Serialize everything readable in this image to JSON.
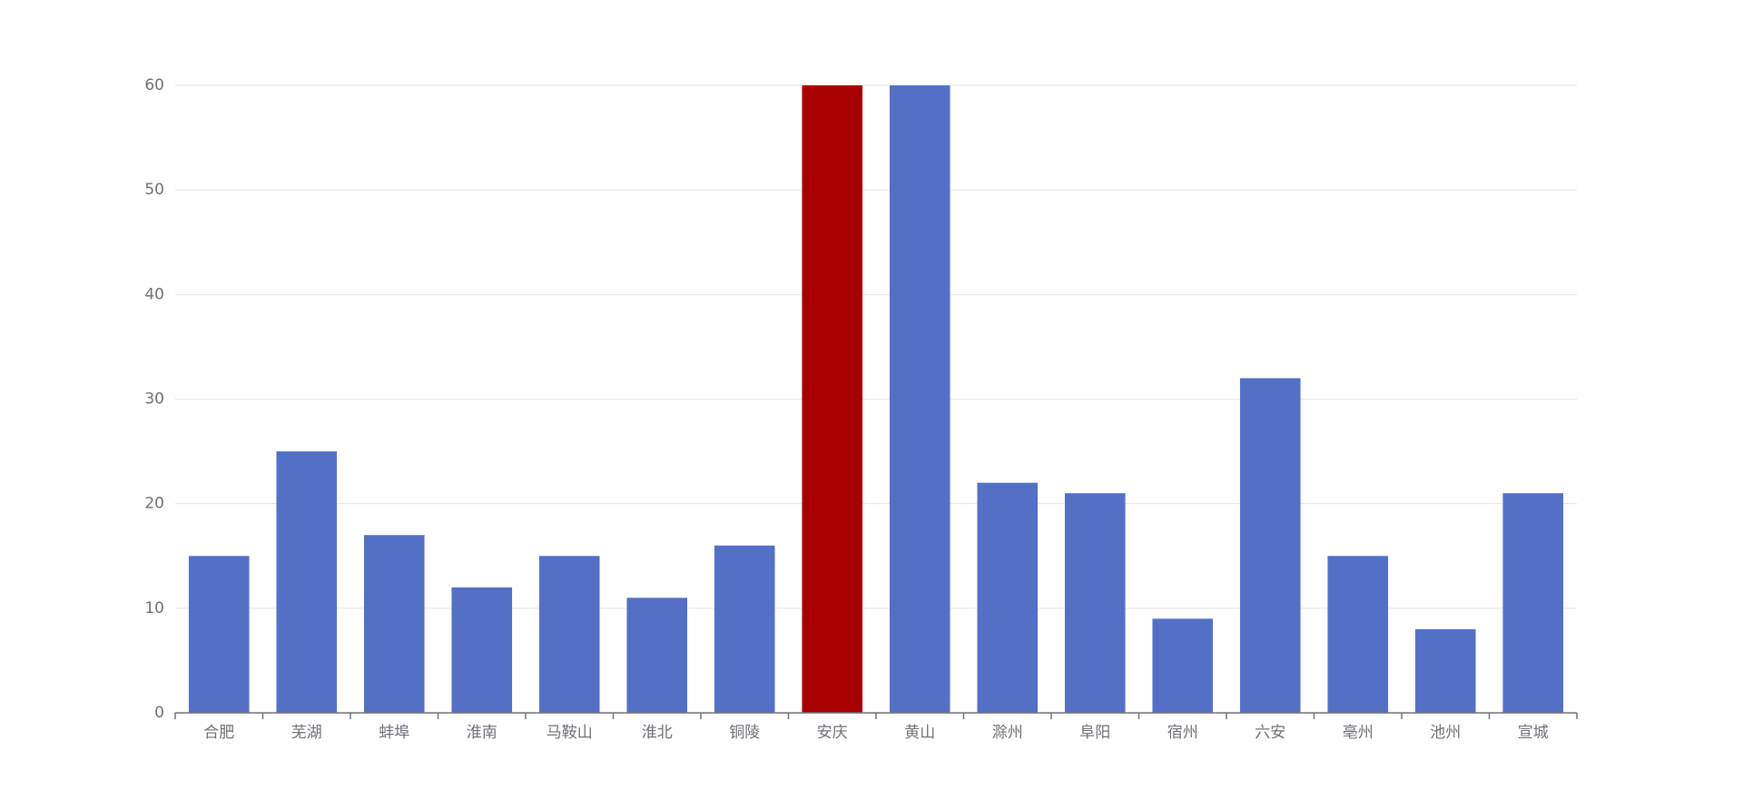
{
  "chart_data": {
    "type": "bar",
    "categories": [
      "合肥",
      "芜湖",
      "蚌埠",
      "淮南",
      "马鞍山",
      "淮北",
      "铜陵",
      "安庆",
      "黄山",
      "滁州",
      "阜阳",
      "宿州",
      "六安",
      "亳州",
      "池州",
      "宣城"
    ],
    "values": [
      15,
      25,
      17,
      12,
      15,
      11,
      16,
      60,
      60,
      22,
      21,
      9,
      32,
      15,
      8,
      21
    ],
    "colors": [
      "#5470c6",
      "#5470c6",
      "#5470c6",
      "#5470c6",
      "#5470c6",
      "#5470c6",
      "#5470c6",
      "#a80000",
      "#5470c6",
      "#5470c6",
      "#5470c6",
      "#5470c6",
      "#5470c6",
      "#5470c6",
      "#5470c6",
      "#5470c6"
    ],
    "ylim": [
      0,
      60
    ],
    "yticks": [
      0,
      10,
      20,
      30,
      40,
      50,
      60
    ],
    "grid": true
  }
}
